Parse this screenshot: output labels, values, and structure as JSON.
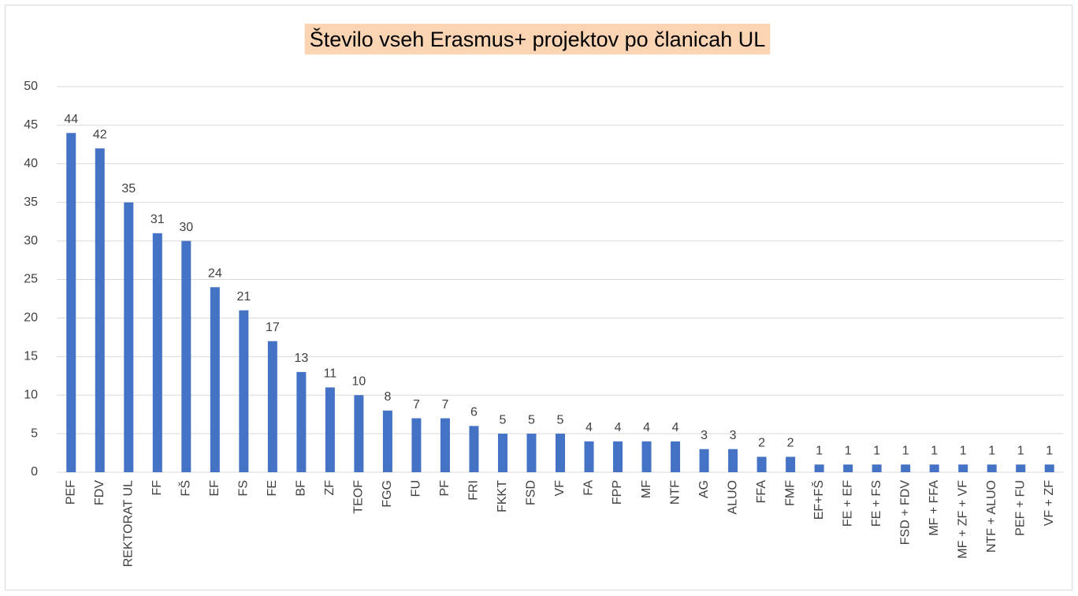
{
  "chart_data": {
    "type": "bar",
    "title": "Število vseh Erasmus+ projektov po članicah UL",
    "categories": [
      "PEF",
      "FDV",
      "REKTORAT UL",
      "FF",
      "FŠ",
      "EF",
      "FS",
      "FE",
      "BF",
      "ZF",
      "TEOF",
      "FGG",
      "FU",
      "PF",
      "FRI",
      "FKKT",
      "FSD",
      "VF",
      "FA",
      "FPP",
      "MF",
      "NTF",
      "AG",
      "ALUO",
      "FFA",
      "FMF",
      "EF+FŠ",
      "FE + EF",
      "FE + FS",
      "FSD + FDV",
      "MF + FFA",
      "MF + ZF + VF",
      "NTF + ALUO",
      "PEF + FU",
      "VF + ZF"
    ],
    "values": [
      44,
      42,
      35,
      31,
      30,
      24,
      21,
      17,
      13,
      11,
      10,
      8,
      7,
      7,
      6,
      5,
      5,
      5,
      4,
      4,
      4,
      4,
      3,
      3,
      2,
      2,
      1,
      1,
      1,
      1,
      1,
      1,
      1,
      1,
      1
    ],
    "color": "#4472c4",
    "ylim": [
      0,
      50
    ],
    "yticks": [
      0,
      5,
      10,
      15,
      20,
      25,
      30,
      35,
      40,
      45,
      50
    ],
    "grid": true
  }
}
